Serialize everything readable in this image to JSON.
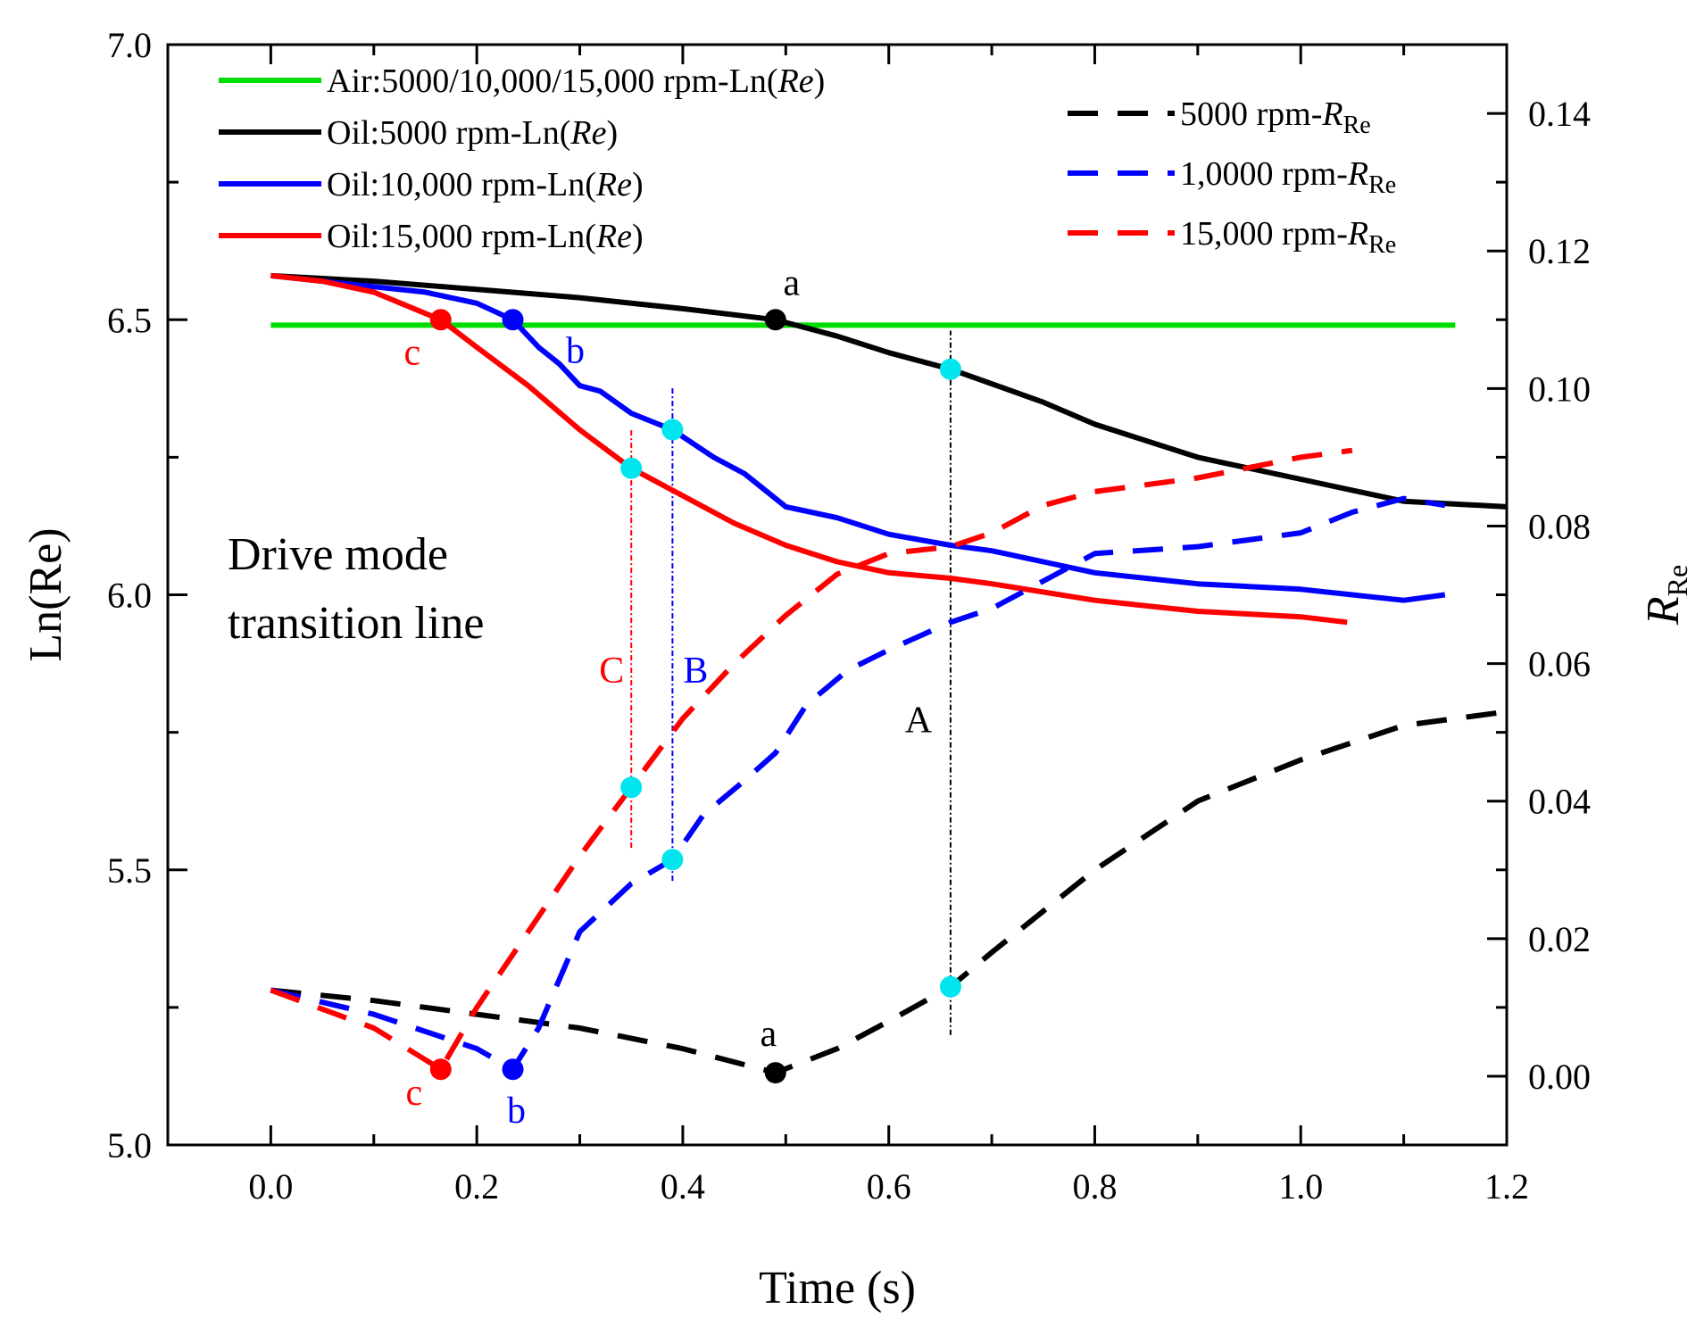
{
  "chart_data": {
    "type": "line",
    "xlabel": "Time (s)",
    "ylabel": "Ln(Re)",
    "y2label": {
      "main": "R",
      "sub": "Re"
    },
    "xlim": [
      -0.1,
      1.2
    ],
    "ylim": [
      5.0,
      7.0
    ],
    "y2lim": [
      -0.01,
      0.15
    ],
    "x_ticks": [
      0.0,
      0.2,
      0.4,
      0.6,
      0.8,
      1.0,
      1.2
    ],
    "y_ticks": [
      5.0,
      5.5,
      6.0,
      6.5,
      7.0
    ],
    "y2_ticks": [
      0.0,
      0.02,
      0.04,
      0.06,
      0.08,
      0.1,
      0.12,
      0.14
    ],
    "x_tick_labels": [
      "0.0",
      "0.2",
      "0.4",
      "0.6",
      "0.8",
      "1.0",
      "1.2"
    ],
    "y_tick_labels": [
      "5.0",
      "5.5",
      "6.0",
      "6.5",
      "7.0"
    ],
    "y2_tick_labels": [
      "0.00",
      "0.02",
      "0.04",
      "0.06",
      "0.08",
      "0.10",
      "0.12",
      "0.14"
    ],
    "legend_left": [
      {
        "text": "Air:5000/10,000/15,000 rpm-Ln(",
        "italic": "Re",
        "tail": ")",
        "color": "#00dd00"
      },
      {
        "text": "Oil:5000 rpm-Ln(",
        "italic": "Re",
        "tail": ")",
        "color": "#000000"
      },
      {
        "text": "Oil:10,000 rpm-Ln(",
        "italic": "Re",
        "tail": ")",
        "color": "#0000ff"
      },
      {
        "text": "Oil:15,000 rpm-Ln(",
        "italic": "Re",
        "tail": ")",
        "color": "#ff0000"
      }
    ],
    "legend_right": [
      {
        "text": "5000 rpm-",
        "italic": "R",
        "sub": "Re",
        "color": "#000000"
      },
      {
        "text": "1,0000 rpm-",
        "italic": "R",
        "sub": "Re",
        "color": "#0000ff"
      },
      {
        "text": "15,000 rpm-",
        "italic": "R",
        "sub": "Re",
        "color": "#ff0000"
      }
    ],
    "series": [
      {
        "name": "Air:5000/10,000/15,000 rpm-Ln(Re)",
        "axis": "left",
        "style": "solid",
        "color": "#00dd00",
        "x": [
          0.0,
          1.15
        ],
        "y": [
          6.49,
          6.49
        ]
      },
      {
        "name": "Oil:5000 rpm-Ln(Re)",
        "axis": "left",
        "style": "solid",
        "color": "#000000",
        "x": [
          0.0,
          0.1,
          0.2,
          0.3,
          0.4,
          0.49,
          0.55,
          0.6,
          0.66,
          0.75,
          0.8,
          0.9,
          1.0,
          1.1,
          1.2
        ],
        "y": [
          6.58,
          6.57,
          6.555,
          6.54,
          6.52,
          6.5,
          6.47,
          6.44,
          6.41,
          6.35,
          6.31,
          6.25,
          6.21,
          6.17,
          6.16
        ]
      },
      {
        "name": "Oil:10,000 rpm-Ln(Re)",
        "axis": "left",
        "style": "solid",
        "color": "#0000ff",
        "x": [
          0.0,
          0.1,
          0.15,
          0.2,
          0.235,
          0.26,
          0.28,
          0.3,
          0.32,
          0.35,
          0.39,
          0.43,
          0.46,
          0.5,
          0.55,
          0.6,
          0.66,
          0.7,
          0.75,
          0.8,
          0.85,
          0.9,
          1.0,
          1.05,
          1.1,
          1.14
        ],
        "y": [
          6.58,
          6.56,
          6.55,
          6.53,
          6.5,
          6.45,
          6.42,
          6.38,
          6.37,
          6.33,
          6.3,
          6.25,
          6.22,
          6.16,
          6.14,
          6.11,
          6.09,
          6.08,
          6.06,
          6.04,
          6.03,
          6.02,
          6.01,
          6.0,
          5.99,
          6.0
        ]
      },
      {
        "name": "Oil:15,000 rpm-Ln(Re)",
        "axis": "left",
        "style": "solid",
        "color": "#ff0000",
        "x": [
          0.0,
          0.05,
          0.1,
          0.165,
          0.2,
          0.25,
          0.3,
          0.35,
          0.4,
          0.45,
          0.5,
          0.55,
          0.6,
          0.66,
          0.7,
          0.8,
          0.9,
          1.0,
          1.045
        ],
        "y": [
          6.58,
          6.57,
          6.55,
          6.5,
          6.45,
          6.38,
          6.3,
          6.23,
          6.18,
          6.13,
          6.09,
          6.06,
          6.04,
          6.03,
          6.02,
          5.99,
          5.97,
          5.96,
          5.95
        ]
      },
      {
        "name": "5000 rpm-RRe",
        "axis": "right",
        "style": "dashed",
        "color": "#000000",
        "x": [
          0.0,
          0.1,
          0.2,
          0.3,
          0.4,
          0.49,
          0.55,
          0.6,
          0.66,
          0.7,
          0.8,
          0.9,
          1.0,
          1.1,
          1.2
        ],
        "y": [
          0.0125,
          0.011,
          0.009,
          0.007,
          0.004,
          0.0005,
          0.004,
          0.008,
          0.013,
          0.018,
          0.03,
          0.04,
          0.046,
          0.051,
          0.053
        ]
      },
      {
        "name": "1,0000 rpm-RRe",
        "axis": "right",
        "style": "dashed",
        "color": "#0000ff",
        "x": [
          0.0,
          0.1,
          0.2,
          0.235,
          0.26,
          0.3,
          0.35,
          0.39,
          0.42,
          0.46,
          0.49,
          0.52,
          0.56,
          0.6,
          0.66,
          0.7,
          0.75,
          0.8,
          0.9,
          1.0,
          1.05,
          1.1,
          1.14
        ],
        "y": [
          0.0125,
          0.009,
          0.004,
          0.001,
          0.007,
          0.021,
          0.028,
          0.0315,
          0.038,
          0.043,
          0.047,
          0.054,
          0.059,
          0.062,
          0.066,
          0.068,
          0.072,
          0.076,
          0.077,
          0.079,
          0.082,
          0.084,
          0.083
        ]
      },
      {
        "name": "15,000 rpm-RRe",
        "axis": "right",
        "style": "dashed",
        "color": "#ff0000",
        "x": [
          0.0,
          0.1,
          0.165,
          0.2,
          0.25,
          0.3,
          0.35,
          0.4,
          0.45,
          0.5,
          0.55,
          0.6,
          0.66,
          0.7,
          0.75,
          0.8,
          0.9,
          1.0,
          1.05
        ],
        "y": [
          0.0125,
          0.007,
          0.001,
          0.01,
          0.021,
          0.032,
          0.042,
          0.052,
          0.06,
          0.067,
          0.073,
          0.076,
          0.077,
          0.079,
          0.083,
          0.085,
          0.087,
          0.09,
          0.091
        ]
      }
    ],
    "markers": [
      {
        "x": 0.49,
        "y": 6.5,
        "axis": "left",
        "color": "#000000",
        "label": "a",
        "dx": 18,
        "dy": -28
      },
      {
        "x": 0.235,
        "y": 6.5,
        "axis": "left",
        "color": "#0000ff",
        "label": "b",
        "dx": 70,
        "dy": 48
      },
      {
        "x": 0.165,
        "y": 6.5,
        "axis": "left",
        "color": "#ff0000",
        "label": "c",
        "dx": -32,
        "dy": 50
      },
      {
        "x": 0.49,
        "y": 0.0005,
        "axis": "right",
        "color": "#000000",
        "label": "a",
        "dx": -8,
        "dy": -30
      },
      {
        "x": 0.235,
        "y": 0.001,
        "axis": "right",
        "color": "#0000ff",
        "label": "b",
        "dx": 4,
        "dy": 60
      },
      {
        "x": 0.165,
        "y": 0.001,
        "axis": "right",
        "color": "#ff0000",
        "label": "c",
        "dx": -30,
        "dy": 40
      },
      {
        "x": 0.66,
        "y": 6.41,
        "axis": "left",
        "color": "#00e5ee",
        "label": ""
      },
      {
        "x": 0.39,
        "y": 6.3,
        "axis": "left",
        "color": "#00e5ee",
        "label": ""
      },
      {
        "x": 0.35,
        "y": 6.23,
        "axis": "left",
        "color": "#00e5ee",
        "label": ""
      },
      {
        "x": 0.66,
        "y": 0.013,
        "axis": "right",
        "color": "#00e5ee",
        "label": ""
      },
      {
        "x": 0.39,
        "y": 0.0315,
        "axis": "right",
        "color": "#00e5ee",
        "label": ""
      },
      {
        "x": 0.35,
        "y": 0.042,
        "axis": "right",
        "color": "#00e5ee",
        "label": ""
      }
    ],
    "transition_lines": [
      {
        "x": 0.66,
        "y_from": 5.2,
        "y_to": 6.48,
        "color": "#000000",
        "label": "A",
        "label_y": 5.75,
        "label_dx": -36
      },
      {
        "x": 0.39,
        "y_from": 5.48,
        "y_to": 6.38,
        "color": "#0000ff",
        "label": "B",
        "label_y": 5.84,
        "label_dx": 26
      },
      {
        "x": 0.35,
        "y_from": 5.54,
        "y_to": 6.3,
        "color": "#ff0000",
        "label": "C",
        "label_y": 5.84,
        "label_dx": -22
      }
    ],
    "annotation": [
      "Drive mode",
      "transition line"
    ]
  }
}
